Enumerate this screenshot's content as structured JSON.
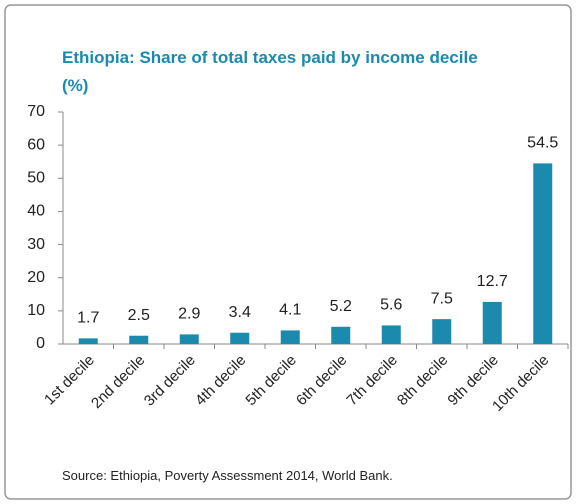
{
  "chart_data": {
    "type": "bar",
    "title": "Ethiopia: Share of total taxes paid by income decile (%)",
    "categories": [
      "1st decile",
      "2nd decile",
      "3rd decile",
      "4th decile",
      "5th decile",
      "6th decile",
      "7th decile",
      "8th decile",
      "9th decile",
      "10th decile"
    ],
    "values": [
      1.7,
      2.5,
      2.9,
      3.4,
      4.1,
      5.2,
      5.6,
      7.5,
      12.7,
      54.5
    ],
    "color": "#1b8aad",
    "ylim": [
      0,
      70
    ],
    "yticks": [
      0,
      10,
      20,
      30,
      40,
      50,
      60,
      70
    ],
    "grid": false,
    "source": "Source: Ethiopia, Poverty Assessment 2014, World Bank."
  }
}
